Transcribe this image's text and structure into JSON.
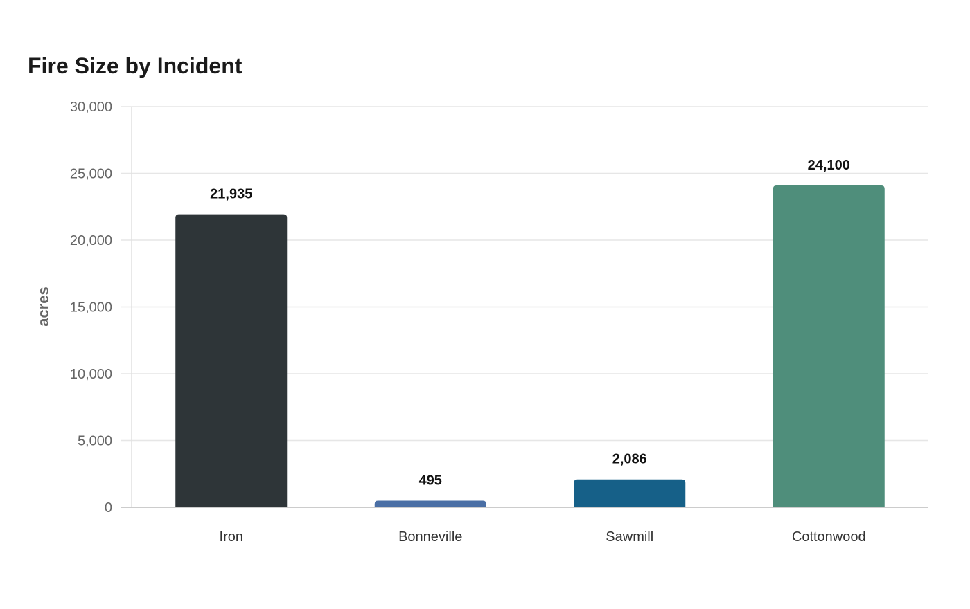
{
  "chart_data": {
    "type": "bar",
    "title": "Fire Size by Incident",
    "xlabel": "",
    "ylabel": "acres",
    "ylim": [
      0,
      30000
    ],
    "yticks": [
      0,
      5000,
      10000,
      15000,
      20000,
      25000,
      30000
    ],
    "ytick_labels": [
      "0",
      "5,000",
      "10,000",
      "15,000",
      "20,000",
      "25,000",
      "30,000"
    ],
    "categories": [
      "Iron",
      "Bonneville",
      "Sawmill",
      "Cottonwood"
    ],
    "values": [
      21935,
      495,
      2086,
      24100
    ],
    "value_labels": [
      "21,935",
      "495",
      "2,086",
      "24,100"
    ],
    "colors": [
      "#2e3538",
      "#4a6fa5",
      "#166088",
      "#4f8e7b"
    ],
    "grid": true,
    "legend": "none"
  }
}
